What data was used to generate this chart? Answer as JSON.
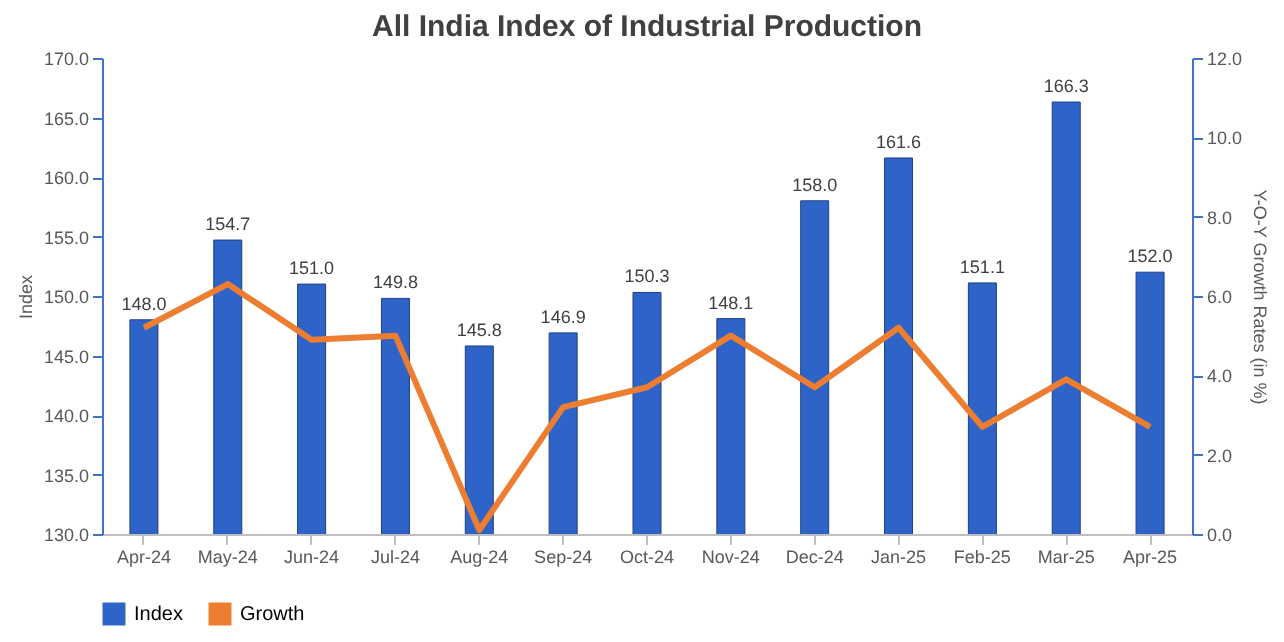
{
  "chart_data": {
    "type": "bar",
    "title": "All India Index of Industrial Production",
    "ylabel": "Index",
    "y2label": "Y-O-Y Growth Rates (in %)",
    "categories": [
      "Apr-24",
      "May-24",
      "Jun-24",
      "Jul-24",
      "Aug-24",
      "Sep-24",
      "Oct-24",
      "Nov-24",
      "Dec-24",
      "Jan-25",
      "Feb-25",
      "Mar-25",
      "Apr-25"
    ],
    "series": [
      {
        "name": "Index",
        "color": "#2e64c8",
        "values": [
          148.0,
          154.7,
          151.0,
          149.8,
          145.8,
          146.9,
          150.3,
          148.1,
          158.0,
          161.6,
          151.1,
          166.3,
          152.0
        ],
        "value_labels": [
          "148.0",
          "154.7",
          "151.0",
          "149.8",
          "145.8",
          "146.9",
          "150.3",
          "148.1",
          "158.0",
          "161.6",
          "151.1",
          "166.3",
          "152.0"
        ]
      },
      {
        "name": "Growth",
        "type": "line",
        "axis": "y2",
        "color": "#ed7d31",
        "values": [
          5.2,
          6.3,
          4.9,
          5.0,
          0.1,
          3.2,
          3.7,
          5.0,
          3.7,
          5.2,
          2.7,
          3.9,
          2.7
        ]
      }
    ],
    "ylim": [
      130,
      170
    ],
    "yticks": [
      {
        "value": 130,
        "label": "130.0"
      },
      {
        "value": 135,
        "label": "135.0"
      },
      {
        "value": 140,
        "label": "140.0"
      },
      {
        "value": 145,
        "label": "145.0"
      },
      {
        "value": 150,
        "label": "150.0"
      },
      {
        "value": 155,
        "label": "155.0"
      },
      {
        "value": 160,
        "label": "160.0"
      },
      {
        "value": 165,
        "label": "165.0"
      },
      {
        "value": 170,
        "label": "170.0"
      }
    ],
    "y2lim": [
      0,
      12
    ],
    "y2ticks": [
      {
        "value": 0,
        "label": "0.0"
      },
      {
        "value": 2,
        "label": "2.0"
      },
      {
        "value": 4,
        "label": "4.0"
      },
      {
        "value": 6,
        "label": "6.0"
      },
      {
        "value": 8,
        "label": "8.0"
      },
      {
        "value": 10,
        "label": "10.0"
      },
      {
        "value": 12,
        "label": "12.0"
      }
    ],
    "legend": "bottom",
    "grid": false,
    "marker": "none",
    "line_style": "solid"
  }
}
